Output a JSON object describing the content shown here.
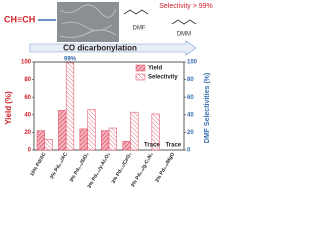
{
  "header": {
    "reactant": "CH≡CH",
    "selectivity": "Selectivity > 99%",
    "product1": "DMF",
    "product2": "DMM",
    "reaction": "CO dicarbonylation"
  },
  "chart_data": {
    "type": "bar",
    "categories": [
      "10% Pd/AC",
      "3% Pd₀.₅/AC",
      "3% Pd₀.₅/SiO₂",
      "3% Pd₀.₅/γ-Al₂O₃",
      "3% Pd₀.₅/CeO₂",
      "3% Pd₀.₅/g-C₃N₄",
      "3% Pd₀.₅/MgO"
    ],
    "series": [
      {
        "name": "Yield",
        "color": "#e0455c",
        "values": [
          22,
          45,
          24,
          22,
          10,
          null,
          null
        ]
      },
      {
        "name": "Selectivity",
        "color": "#e0455c",
        "values": [
          12,
          99,
          46,
          25,
          43,
          41,
          null
        ],
        "axis": "y2"
      }
    ],
    "ylabel": "Yield (%)",
    "y2label": "DMF Selectivities (%)",
    "ylim": [
      0,
      100
    ],
    "yticks": [
      0,
      20,
      40,
      60,
      80,
      100
    ],
    "y2lim": [
      0,
      100
    ],
    "y2ticks": [
      0,
      20,
      40,
      60,
      80,
      100
    ],
    "annotations": [
      "99%",
      "Trace",
      "Trace"
    ],
    "legend": "top-right"
  }
}
